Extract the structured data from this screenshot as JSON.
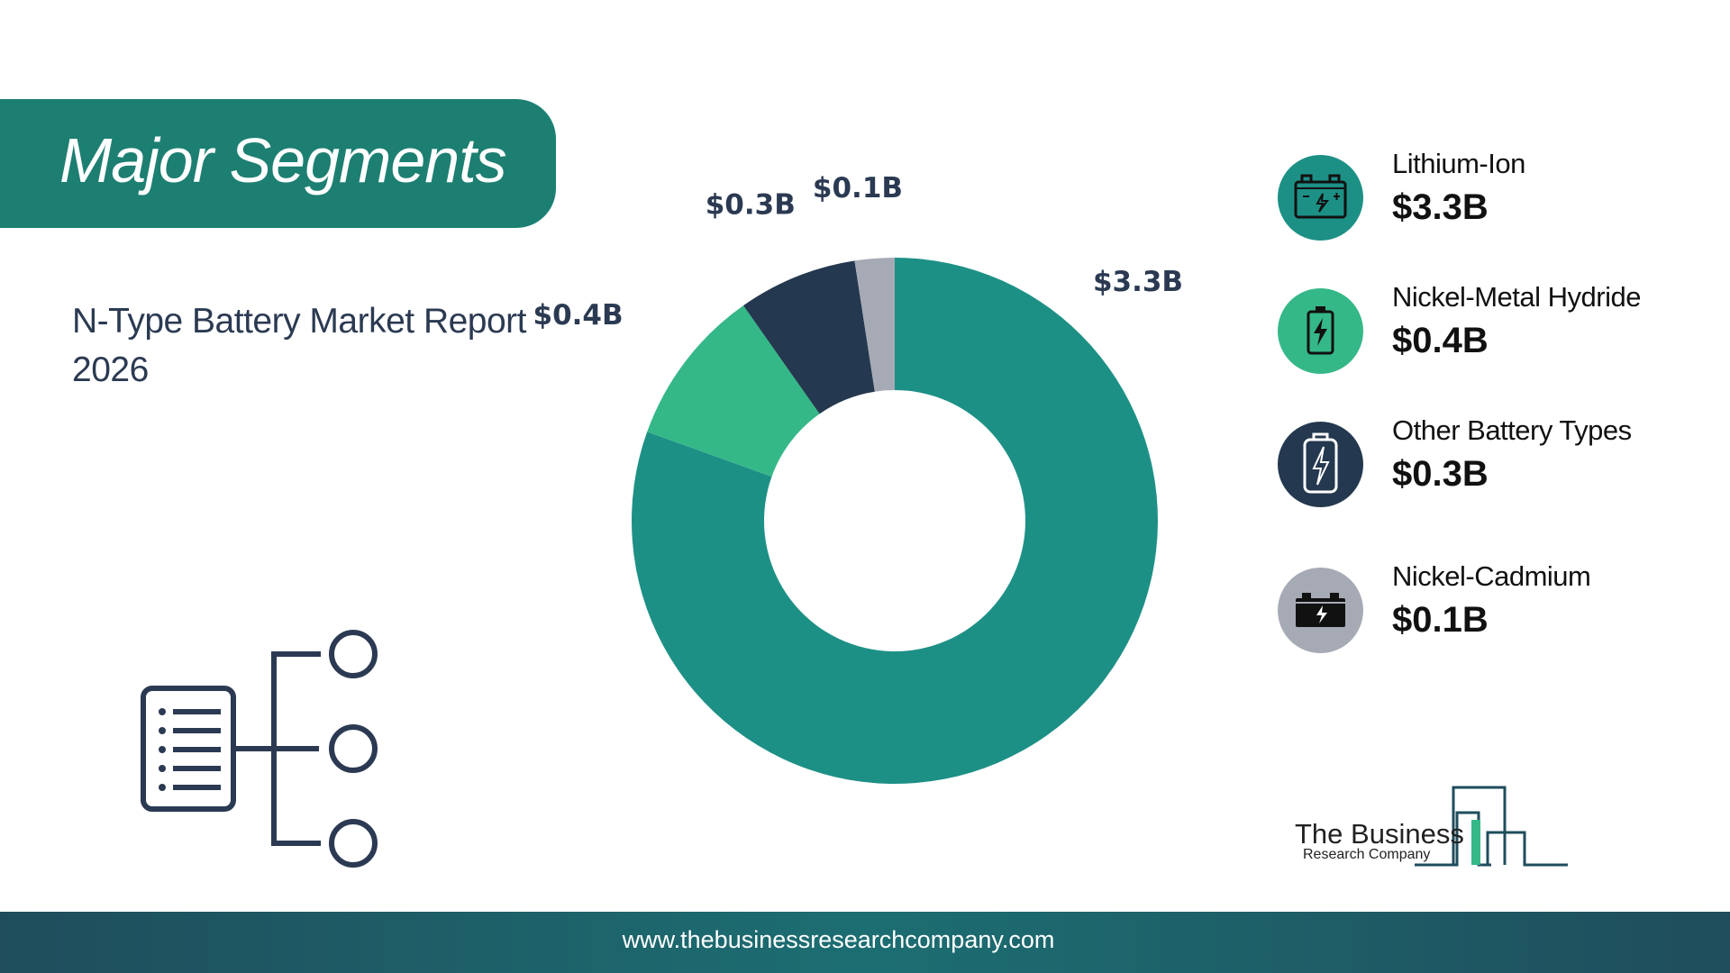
{
  "header": {
    "title": "Major Segments"
  },
  "subtitle": "N-Type Battery Market Report 2026",
  "chart_data": {
    "type": "pie",
    "donut": true,
    "categories": [
      "Lithium-Ion",
      "Nickel-Metal Hydride",
      "Other Battery Types",
      "Nickel-Cadmium"
    ],
    "values": [
      3.3,
      0.4,
      0.3,
      0.1
    ],
    "data_labels": [
      "$3.3B",
      "$0.4B",
      "$0.3B",
      "$0.1B"
    ],
    "colors": [
      "#1d9086",
      "#35b888",
      "#24384f",
      "#a6aab5"
    ]
  },
  "legend": [
    {
      "name": "Lithium-Ion",
      "value": "$3.3B",
      "icon": "car-battery-icon",
      "color": "#1d9086"
    },
    {
      "name": "Nickel-Metal Hydride",
      "value": "$0.4B",
      "icon": "battery-charging-icon",
      "color": "#35b888"
    },
    {
      "name": "Other Battery Types",
      "value": "$0.3B",
      "icon": "battery-bolt-icon",
      "color": "#24384f"
    },
    {
      "name": "Nickel-Cadmium",
      "value": "$0.1B",
      "icon": "battery-block-icon",
      "color": "#a6aab5"
    }
  ],
  "logo": {
    "line1": "The Business",
    "line2": "Research Company"
  },
  "footer": {
    "url": "www.thebusinessresearchcompany.com"
  }
}
